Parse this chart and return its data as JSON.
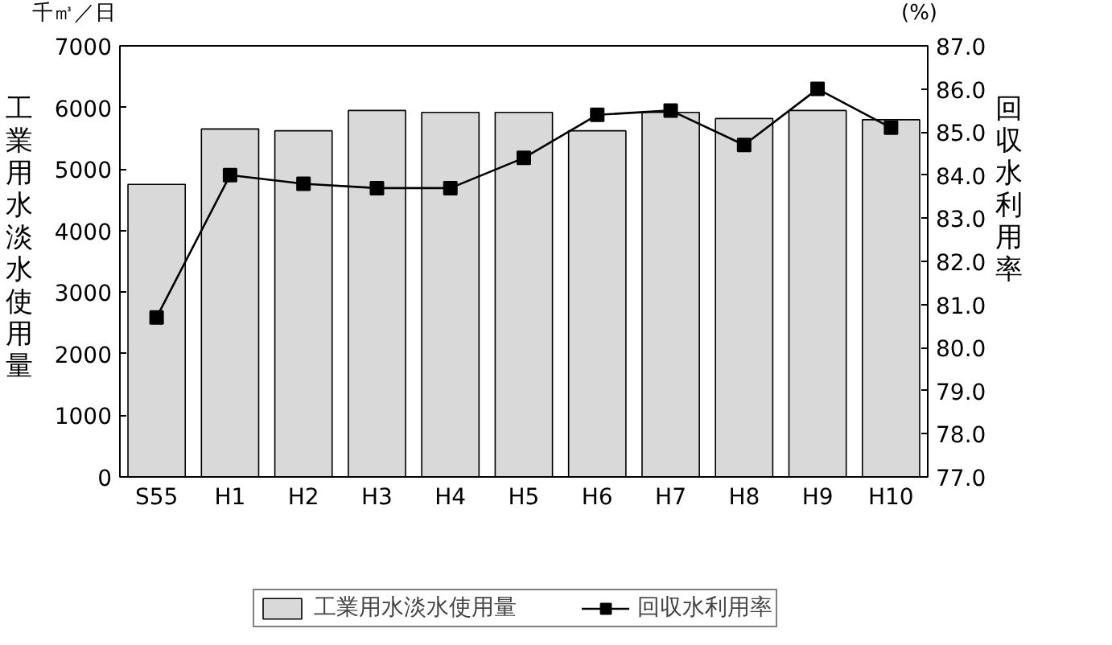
{
  "chart_data": {
    "type": "bar",
    "categories": [
      "S55",
      "H1",
      "H2",
      "H3",
      "H4",
      "H5",
      "H6",
      "H7",
      "H8",
      "H9",
      "H10"
    ],
    "ylabel": "工業用水淡水使用量",
    "y2label": "回収水利用率",
    "annotations": [
      "千㎥／日",
      "(%)"
    ],
    "series": [
      {
        "name": "工業用水淡水使用量",
        "color": "#d9d9d9",
        "values": [
          4750,
          5650,
          5620,
          5950,
          5920,
          5920,
          5620,
          5920,
          5820,
          5950,
          5800
        ]
      },
      {
        "name": "回収水利用率",
        "type": "line",
        "axis": "y2",
        "color": "#000000",
        "marker": "square",
        "values": [
          80.7,
          84.0,
          83.8,
          83.7,
          83.7,
          84.4,
          85.4,
          85.5,
          84.7,
          86.0,
          85.1
        ]
      }
    ],
    "ylim": [
      0,
      7000
    ],
    "yticks": [
      0,
      1000,
      2000,
      3000,
      4000,
      5000,
      6000,
      7000
    ],
    "y2lim": [
      77,
      87
    ],
    "y2ticks": [
      {
        "value": 77,
        "label": "77.0"
      },
      {
        "value": 78,
        "label": "78.0"
      },
      {
        "value": 79,
        "label": "79.0"
      },
      {
        "value": 80,
        "label": "80.0"
      },
      {
        "value": 81,
        "label": "81.0"
      },
      {
        "value": 82,
        "label": "82.0"
      },
      {
        "value": 83,
        "label": "83.0"
      },
      {
        "value": 84,
        "label": "84.0"
      },
      {
        "value": 85,
        "label": "85.0"
      },
      {
        "value": 86,
        "label": "86.0"
      },
      {
        "value": 87,
        "label": "87.0"
      }
    ],
    "grid": false,
    "legend": "bottom"
  }
}
